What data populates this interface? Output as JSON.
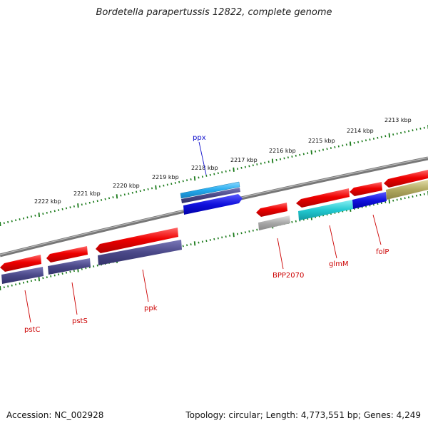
{
  "title": "Bordetella parapertussis 12822, complete genome",
  "footer": {
    "accession": "Accession: NC_002928",
    "summary": "Topology: circular; Length: 4,773,551 bp; Genes: 4,249"
  },
  "colors": {
    "background": "#ffffff",
    "backbone": "#808080",
    "tick": "#1a7a1a",
    "cds_red": "#ee0000",
    "cds_navy": "#4a4888",
    "cds_blue": "#1111dd",
    "cds_cyan": "#22c8d0",
    "cds_lightblue": "#22aaee",
    "cds_gray": "#a8a8a8",
    "cds_olive": "#b0a860",
    "label_red": "#cc0000",
    "label_blue": "#1111cc"
  },
  "scale_labels": [
    "2213 kbp",
    "2214 kbp",
    "2215 kbp",
    "2216 kbp",
    "2217 kbp",
    "2218 kbp",
    "2219 kbp",
    "2220 kbp",
    "2221 kbp",
    "2222 kbp"
  ],
  "genes": [
    {
      "name": "ppx",
      "color": "label_blue"
    },
    {
      "name": "pstC",
      "color": "label_red"
    },
    {
      "name": "pstS",
      "color": "label_red"
    },
    {
      "name": "ppk",
      "color": "label_red"
    },
    {
      "name": "BPP2070",
      "color": "label_red"
    },
    {
      "name": "glmM",
      "color": "label_red"
    },
    {
      "name": "folP",
      "color": "label_red"
    }
  ]
}
